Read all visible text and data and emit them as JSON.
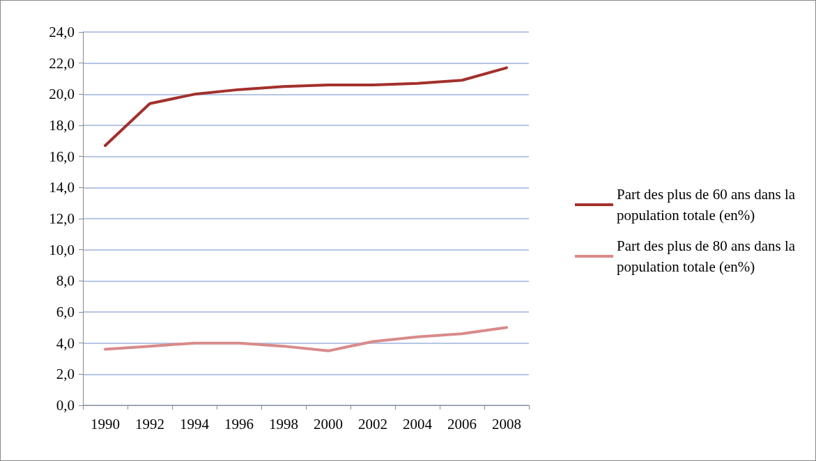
{
  "chart_data": {
    "type": "line",
    "categories": [
      "1990",
      "1992",
      "1994",
      "1996",
      "1998",
      "2000",
      "2002",
      "2004",
      "2006",
      "2008"
    ],
    "series": [
      {
        "name": "Part des plus de 60 ans dans la population totale (en%)",
        "color": "#a3302c",
        "values": [
          16.7,
          19.4,
          20.0,
          20.3,
          20.5,
          20.6,
          20.6,
          20.7,
          20.9,
          21.7
        ]
      },
      {
        "name": "Part des plus de 80 ans dans la population totale (en%)",
        "color": "#d98a8a",
        "values": [
          3.6,
          3.8,
          4.0,
          4.0,
          3.8,
          3.5,
          4.1,
          4.4,
          4.6,
          5.0
        ]
      }
    ],
    "ylim": [
      0,
      24
    ],
    "yticks": [
      {
        "value": 0,
        "label": "0,0"
      },
      {
        "value": 2,
        "label": "2,0"
      },
      {
        "value": 4,
        "label": "4,0"
      },
      {
        "value": 6,
        "label": "6,0"
      },
      {
        "value": 8,
        "label": "8,0"
      },
      {
        "value": 10,
        "label": "10,0"
      },
      {
        "value": 12,
        "label": "12,0"
      },
      {
        "value": 14,
        "label": "14,0"
      },
      {
        "value": 16,
        "label": "16,0"
      },
      {
        "value": 18,
        "label": "18,0"
      },
      {
        "value": 20,
        "label": "20,0"
      },
      {
        "value": 22,
        "label": "22,0"
      },
      {
        "value": 24,
        "label": "24,0"
      }
    ],
    "grid": "y",
    "legend": "right",
    "marker": "none",
    "line_style": "solid"
  }
}
